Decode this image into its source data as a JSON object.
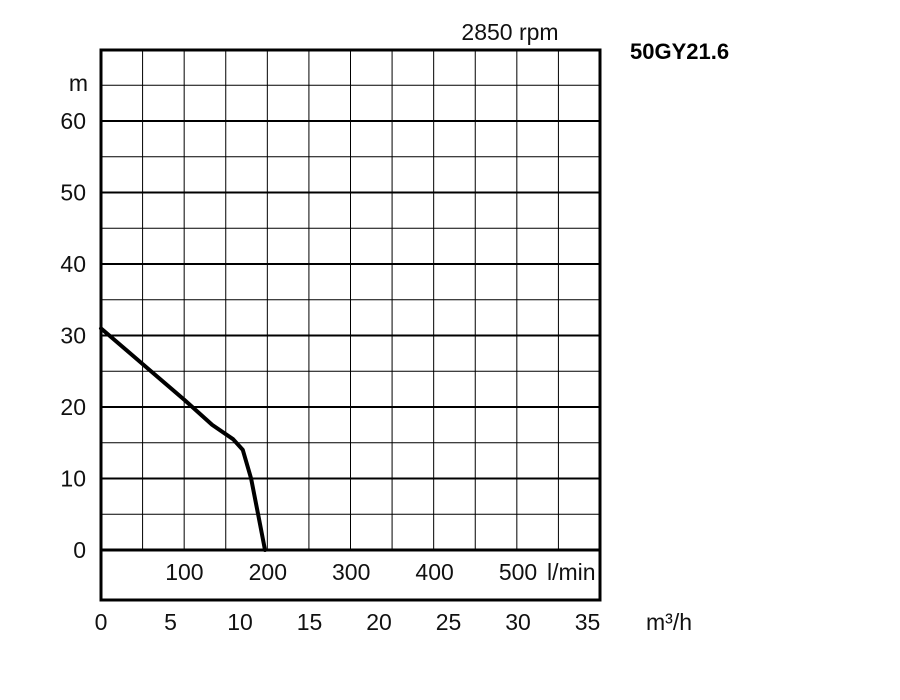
{
  "chart_data": {
    "type": "line",
    "title": "50GY21.6",
    "speed_label": "2850 rpm",
    "y_unit": "m",
    "x_unit": "m³/h",
    "flow_lpm_unit": "l/min",
    "ylim": [
      0,
      70
    ],
    "xlim": [
      0,
      36
    ],
    "y_ticks": [
      "0",
      "10",
      "20",
      "30",
      "40",
      "50",
      "60"
    ],
    "x_ticks_m3h": [
      "0",
      "5",
      "10",
      "15",
      "20",
      "25",
      "30",
      "35"
    ],
    "x_ticks_lpm": [
      "100",
      "200",
      "300",
      "400",
      "500"
    ],
    "grid": true,
    "series": [
      {
        "x": [
          0,
          3,
          6,
          8,
          9.5,
          10.2,
          10.8,
          11.3,
          11.8
        ],
        "y": [
          31,
          26,
          21,
          17.5,
          15.5,
          14,
          10,
          5,
          0
        ]
      }
    ],
    "colors": {
      "curve": "#000000",
      "grid": "#000000"
    }
  }
}
